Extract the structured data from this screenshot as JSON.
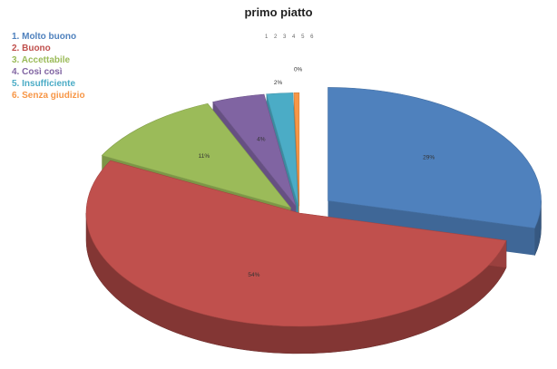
{
  "chart_data": {
    "type": "pie",
    "title": "primo piatto",
    "legend_strip": [
      "1",
      "2",
      "3",
      "4",
      "5",
      "6"
    ],
    "legend_position": "top-left",
    "slices": [
      {
        "label": "1. Molto buono",
        "value": 29,
        "pct_label": "29%",
        "color": "#4f81bd"
      },
      {
        "label": "2. Buono",
        "value": 54,
        "pct_label": "54%",
        "color": "#c0504d"
      },
      {
        "label": "3. Accettabile",
        "value": 11,
        "pct_label": "11%",
        "color": "#9bbb59"
      },
      {
        "label": "4. Così così",
        "value": 4,
        "pct_label": "4%",
        "color": "#8064a2"
      },
      {
        "label": "5. Insufficiente",
        "value": 2,
        "pct_label": "2%",
        "color": "#4bacc6"
      },
      {
        "label": "6. Senza giudizio",
        "value": 0,
        "pct_label": "0%",
        "color": "#f79646"
      }
    ]
  }
}
